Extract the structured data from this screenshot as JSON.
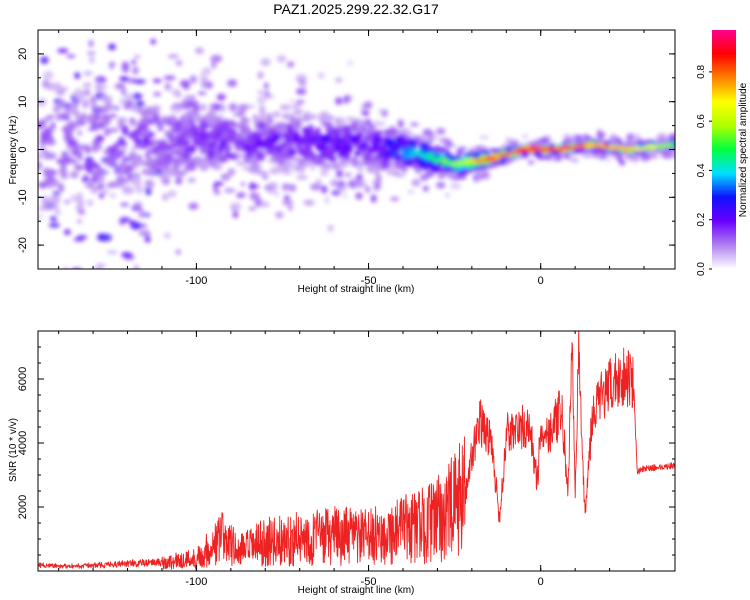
{
  "figure_title": "PAZ1.2025.299.22.32.G17",
  "chart_data": [
    {
      "type": "heatmap",
      "title": "PAZ1.2025.299.22.32.G17",
      "xlabel": "Height of straight line (km)",
      "ylabel": "Frequency (Hz)",
      "xlim": [
        -146,
        39
      ],
      "ylim": [
        -25,
        25
      ],
      "xticks": [
        -100,
        -50,
        0
      ],
      "xtick_labels": [
        "-100",
        "-50",
        "0"
      ],
      "yticks": [
        -20,
        -10,
        0,
        10,
        20
      ],
      "ytick_labels": [
        "-20",
        "-10",
        "0",
        "10",
        "20"
      ],
      "ridge": {
        "description": "spectral energy concentrates near 0 Hz at high straight-line heights",
        "x": [
          -146,
          -100,
          -50,
          -35,
          -25,
          -15,
          -5,
          5,
          15,
          25,
          39
        ],
        "center_hz": [
          0,
          2,
          1,
          -1,
          -3,
          -2,
          0,
          0,
          1,
          0,
          1
        ],
        "half_width_hz": [
          25,
          9,
          7,
          4,
          3,
          2,
          1,
          1,
          1,
          1,
          1
        ],
        "peak_amplitude": [
          0.15,
          0.2,
          0.25,
          0.45,
          0.6,
          0.85,
          0.95,
          0.9,
          0.85,
          0.8,
          0.55
        ]
      },
      "colorbar": {
        "label": "Normalized spectral amplitude",
        "range": [
          0,
          0.97
        ],
        "ticks": [
          0.0,
          0.2,
          0.4,
          0.6,
          0.8
        ],
        "tick_labels": [
          "0.0",
          "0.2",
          "0.4",
          "0.6",
          "0.8"
        ],
        "colors": [
          "#ffffff",
          "#b080f0",
          "#6a00ff",
          "#1010ff",
          "#00e0ff",
          "#00ff40",
          "#b0ff00",
          "#ffff00",
          "#ff8000",
          "#ff0000",
          "#ff0090"
        ]
      }
    },
    {
      "type": "line",
      "xlabel": "Height of straight line (km)",
      "ylabel": "SNR (10 * v/v)",
      "xlim": [
        -146,
        39
      ],
      "ylim": [
        0,
        7500
      ],
      "xticks": [
        -100,
        -50,
        0
      ],
      "xtick_labels": [
        "-100",
        "-50",
        "0"
      ],
      "yticks": [
        2000,
        4000,
        6000
      ],
      "ytick_labels": [
        "2000",
        "4000",
        "6000"
      ],
      "series": [
        {
          "name": "SNR",
          "color": "#ee2222",
          "x": [
            -146,
            -135,
            -120,
            -110,
            -100,
            -95,
            -92,
            -88,
            -80,
            -70,
            -60,
            -50,
            -45,
            -40,
            -35,
            -30,
            -25,
            -22,
            -20,
            -18,
            -16,
            -14,
            -12,
            -10,
            -7,
            -5,
            -3,
            -1,
            0,
            2,
            4,
            6,
            8,
            9,
            10,
            11,
            12,
            13,
            15,
            18,
            20,
            22,
            24,
            26,
            27,
            28,
            30,
            35,
            39
          ],
          "values": [
            150,
            120,
            200,
            250,
            400,
            800,
            1100,
            600,
            900,
            1000,
            1100,
            1050,
            1150,
            1300,
            1400,
            1600,
            2000,
            2400,
            3600,
            4700,
            4400,
            3900,
            1500,
            4300,
            4400,
            4500,
            4300,
            2800,
            4400,
            4300,
            4600,
            5000,
            2500,
            7200,
            2400,
            7000,
            3500,
            1900,
            5000,
            5500,
            5700,
            6000,
            6100,
            6100,
            5900,
            3100,
            3200,
            3250,
            3300
          ]
        }
      ]
    }
  ]
}
